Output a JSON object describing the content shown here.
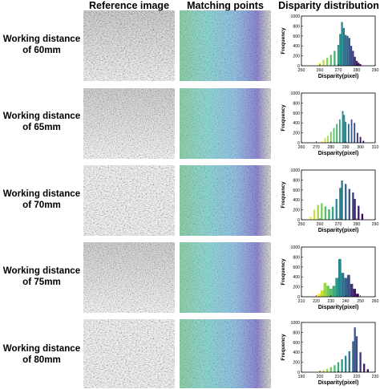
{
  "figure": {
    "column_headers": [
      "Reference image",
      "Matching points",
      "Disparity distribution"
    ],
    "rows": [
      {
        "label_line1": "Working distance",
        "label_line2": "of 60mm"
      },
      {
        "label_line1": "Working distance",
        "label_line2": "of 65mm"
      },
      {
        "label_line1": "Working distance",
        "label_line2": "of 70mm"
      },
      {
        "label_line1": "Working distance",
        "label_line2": "of 75mm"
      },
      {
        "label_line1": "Working distance",
        "label_line2": "of 80mm"
      }
    ]
  },
  "chart_data": [
    {
      "type": "bar",
      "xlabel": "Disparity(pixel)",
      "ylabel": "Frequency",
      "xlim": [
        250,
        290
      ],
      "ylim": [
        0,
        1000
      ],
      "xticks": [
        250,
        260,
        270,
        280,
        290
      ],
      "yticks": [
        0,
        200,
        400,
        600,
        800,
        1000
      ],
      "bins": [
        260,
        262,
        264,
        266,
        268,
        270,
        271,
        272,
        273,
        274,
        275,
        276,
        277,
        278,
        279,
        280,
        281,
        282
      ],
      "values": [
        60,
        120,
        160,
        220,
        300,
        420,
        640,
        880,
        760,
        620,
        600,
        560,
        400,
        300,
        180,
        100,
        60,
        30
      ]
    },
    {
      "type": "bar",
      "xlabel": "Disparity(pixel)",
      "ylabel": "Frequency",
      "xlim": [
        260,
        310
      ],
      "ylim": [
        0,
        1000
      ],
      "xticks": [
        260,
        270,
        280,
        290,
        300,
        310
      ],
      "yticks": [
        0,
        200,
        400,
        600,
        800,
        1000
      ],
      "bins": [
        274,
        276,
        278,
        280,
        282,
        284,
        286,
        288,
        289,
        290,
        292,
        294,
        296,
        298,
        300,
        302
      ],
      "values": [
        30,
        90,
        140,
        220,
        300,
        380,
        470,
        640,
        560,
        420,
        380,
        470,
        400,
        200,
        120,
        40
      ]
    },
    {
      "type": "bar",
      "xlabel": "Disparity(pixel)",
      "ylabel": "Frequency",
      "xlim": [
        250,
        290
      ],
      "ylim": [
        0,
        1000
      ],
      "xticks": [
        250,
        260,
        270,
        280,
        290
      ],
      "yticks": [
        0,
        200,
        400,
        600,
        800,
        1000
      ],
      "bins": [
        255,
        257,
        259,
        261,
        263,
        265,
        267,
        269,
        271,
        272,
        274,
        276,
        278,
        279,
        281,
        283
      ],
      "values": [
        60,
        200,
        300,
        330,
        270,
        210,
        260,
        420,
        640,
        790,
        720,
        620,
        550,
        420,
        280,
        120
      ]
    },
    {
      "type": "bar",
      "xlabel": "Disparity(pixel)",
      "ylabel": "Frequency",
      "xlim": [
        210,
        260
      ],
      "ylim": [
        0,
        1000
      ],
      "xticks": [
        210,
        220,
        230,
        240,
        250,
        260
      ],
      "yticks": [
        0,
        200,
        400,
        600,
        800,
        1000
      ],
      "bins": [
        222,
        224,
        226,
        228,
        230,
        232,
        234,
        236,
        238,
        240,
        242,
        244,
        246,
        248
      ],
      "values": [
        60,
        130,
        280,
        220,
        160,
        220,
        380,
        760,
        480,
        380,
        440,
        260,
        160,
        60
      ]
    },
    {
      "type": "bar",
      "xlabel": "Disparity(pixel)",
      "ylabel": "Frequency",
      "xlim": [
        190,
        230
      ],
      "ylim": [
        0,
        1000
      ],
      "xticks": [
        190,
        200,
        210,
        220,
        230
      ],
      "yticks": [
        0,
        200,
        400,
        600,
        800,
        1000
      ],
      "bins": [
        200,
        202,
        204,
        206,
        208,
        210,
        212,
        214,
        216,
        218,
        219,
        220,
        222,
        224,
        226
      ],
      "values": [
        20,
        40,
        70,
        100,
        140,
        200,
        260,
        330,
        420,
        620,
        900,
        720,
        400,
        170,
        60
      ]
    }
  ]
}
